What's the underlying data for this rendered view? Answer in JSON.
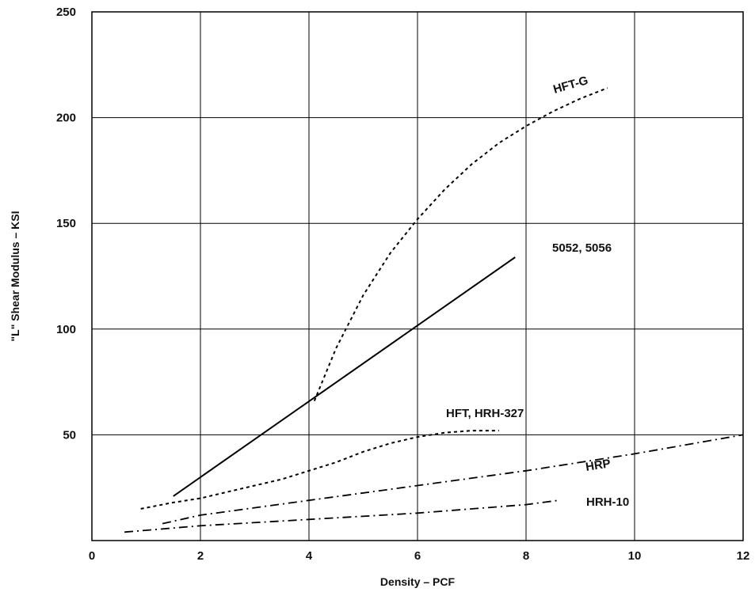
{
  "chart_data": {
    "type": "line",
    "xlabel": "Density – PCF",
    "ylabel": "\"L\" Shear Modulus – KSI",
    "xlim": [
      0,
      12
    ],
    "ylim": [
      0,
      250
    ],
    "x_ticks": [
      "0",
      "2",
      "4",
      "6",
      "8",
      "10",
      "12"
    ],
    "y_ticks": [
      "50",
      "100",
      "150",
      "200",
      "250"
    ],
    "grid": true,
    "series": [
      {
        "name": "5052, 5056",
        "style": "solid",
        "points": [
          [
            1.5,
            21
          ],
          [
            7.8,
            134
          ]
        ]
      },
      {
        "name": "HFT-G",
        "style": "dotted",
        "points": [
          [
            4.1,
            66
          ],
          [
            4.5,
            91
          ],
          [
            5.0,
            116
          ],
          [
            5.5,
            136
          ],
          [
            6.0,
            152
          ],
          [
            6.5,
            166
          ],
          [
            7.0,
            178
          ],
          [
            7.5,
            188
          ],
          [
            8.0,
            196
          ],
          [
            8.5,
            203
          ],
          [
            9.0,
            209
          ],
          [
            9.5,
            214
          ]
        ]
      },
      {
        "name": "HFT, HRH-327",
        "style": "dotted",
        "points": [
          [
            0.9,
            15
          ],
          [
            1.5,
            18
          ],
          [
            2.0,
            20
          ],
          [
            2.5,
            23
          ],
          [
            3.0,
            26
          ],
          [
            3.5,
            29
          ],
          [
            4.0,
            33
          ],
          [
            4.5,
            37
          ],
          [
            5.0,
            42
          ],
          [
            5.5,
            46
          ],
          [
            6.0,
            49
          ],
          [
            6.5,
            51
          ],
          [
            7.0,
            52
          ],
          [
            7.5,
            52
          ]
        ]
      },
      {
        "name": "HRP",
        "style": "dash-dot",
        "points": [
          [
            1.3,
            8
          ],
          [
            2.0,
            12
          ],
          [
            4.0,
            19
          ],
          [
            6.0,
            26
          ],
          [
            8.0,
            33
          ],
          [
            10.0,
            41
          ],
          [
            12.0,
            50
          ]
        ]
      },
      {
        "name": "HRH-10",
        "style": "dash-dot",
        "points": [
          [
            0.6,
            4
          ],
          [
            2.0,
            7
          ],
          [
            4.0,
            10
          ],
          [
            6.0,
            13
          ],
          [
            8.0,
            17
          ],
          [
            8.6,
            19
          ]
        ]
      }
    ]
  }
}
